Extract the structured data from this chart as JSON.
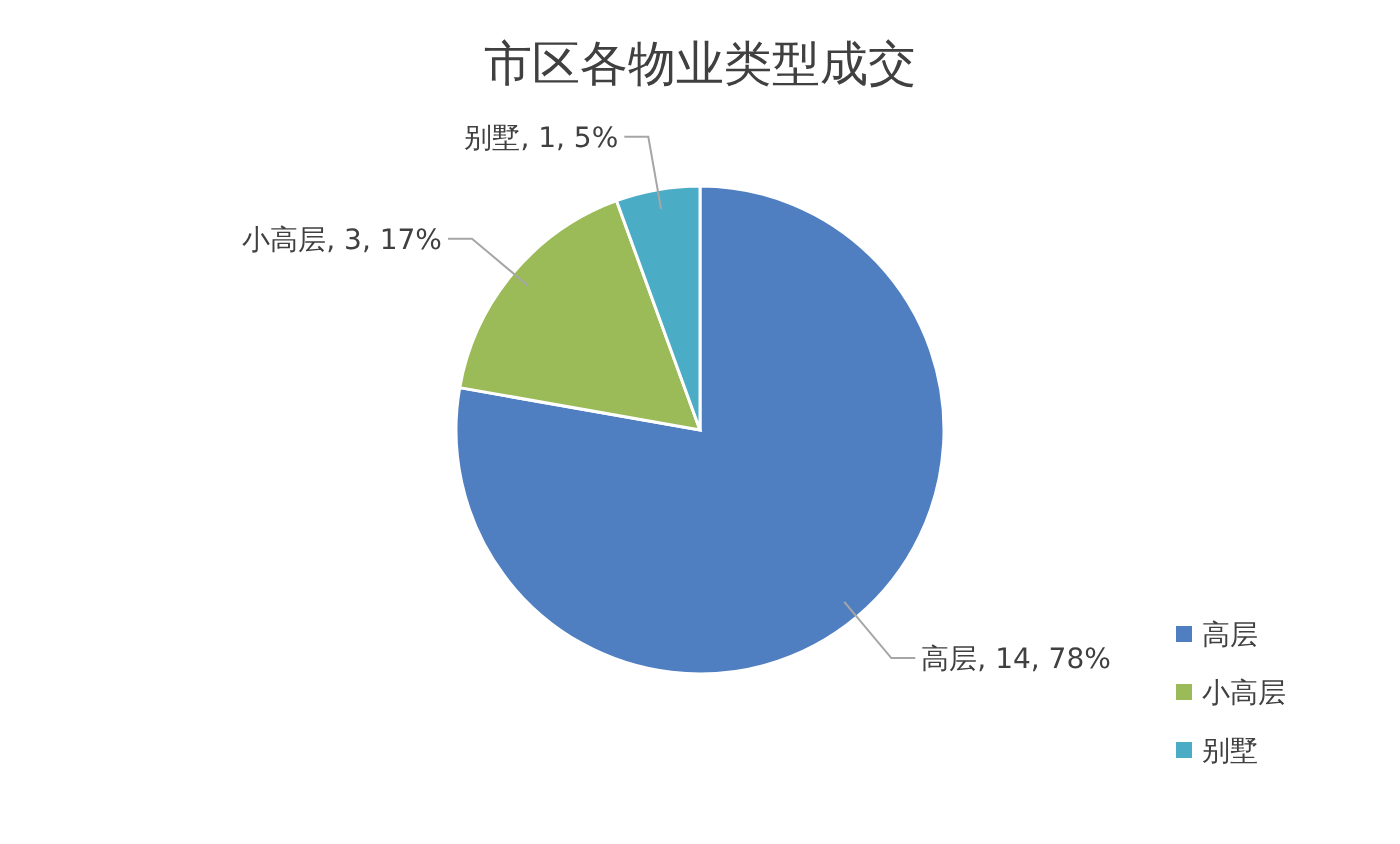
{
  "chart_data": {
    "type": "pie",
    "title": "市区各物业类型成交",
    "categories": [
      "高层",
      "小高层",
      "别墅"
    ],
    "values": [
      14,
      3,
      1
    ],
    "value_labels": [
      ", 14, 78%",
      ", 3, 17%",
      ", 1, 5%"
    ],
    "colors": [
      "#4f7fc0",
      "#9bbb59",
      "#4bacc6"
    ],
    "legend": "right"
  }
}
